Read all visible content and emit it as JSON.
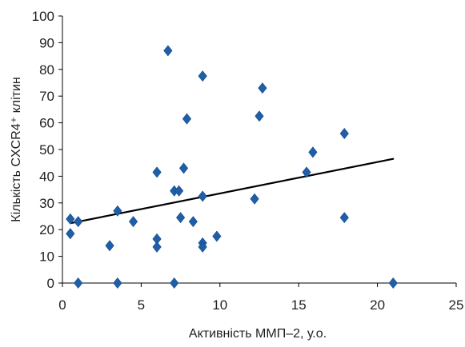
{
  "chart_data": {
    "type": "scatter",
    "title": "",
    "xlabel": "Активність ММП–2, у.о.",
    "ylabel": "Кількість CXCR4⁺ клітин",
    "xlim": [
      0,
      25
    ],
    "ylim": [
      0,
      100
    ],
    "x_ticks": [
      0,
      5,
      10,
      15,
      20,
      25
    ],
    "y_ticks": [
      0,
      10,
      20,
      30,
      40,
      50,
      60,
      70,
      80,
      90,
      100
    ],
    "grid": false,
    "legend": "none",
    "marker": "diamond",
    "marker_color": "#1f5ea8",
    "trendline": {
      "type": "linear",
      "x": [
        0.6,
        21.0
      ],
      "y": [
        22.5,
        46.5
      ],
      "color": "#000000"
    },
    "points": [
      {
        "x": 0.5,
        "y": 24
      },
      {
        "x": 1.0,
        "y": 23
      },
      {
        "x": 0.5,
        "y": 18.5
      },
      {
        "x": 1.0,
        "y": 0
      },
      {
        "x": 3.0,
        "y": 14
      },
      {
        "x": 3.5,
        "y": 27
      },
      {
        "x": 3.5,
        "y": 0
      },
      {
        "x": 4.5,
        "y": 23
      },
      {
        "x": 6.0,
        "y": 41.5
      },
      {
        "x": 6.0,
        "y": 16.5
      },
      {
        "x": 6.0,
        "y": 13.5
      },
      {
        "x": 6.7,
        "y": 87
      },
      {
        "x": 7.1,
        "y": 34.5
      },
      {
        "x": 7.4,
        "y": 34.5
      },
      {
        "x": 7.5,
        "y": 24.5
      },
      {
        "x": 7.1,
        "y": 0
      },
      {
        "x": 7.7,
        "y": 43
      },
      {
        "x": 7.9,
        "y": 61.5
      },
      {
        "x": 8.3,
        "y": 23
      },
      {
        "x": 8.9,
        "y": 77.5
      },
      {
        "x": 8.9,
        "y": 32.5
      },
      {
        "x": 8.9,
        "y": 15
      },
      {
        "x": 8.9,
        "y": 13.5
      },
      {
        "x": 9.8,
        "y": 17.5
      },
      {
        "x": 12.2,
        "y": 31.5
      },
      {
        "x": 12.5,
        "y": 62.5
      },
      {
        "x": 12.7,
        "y": 73
      },
      {
        "x": 15.5,
        "y": 41.5
      },
      {
        "x": 15.9,
        "y": 49
      },
      {
        "x": 17.9,
        "y": 56
      },
      {
        "x": 17.9,
        "y": 24.5
      },
      {
        "x": 21.0,
        "y": 0
      }
    ]
  }
}
